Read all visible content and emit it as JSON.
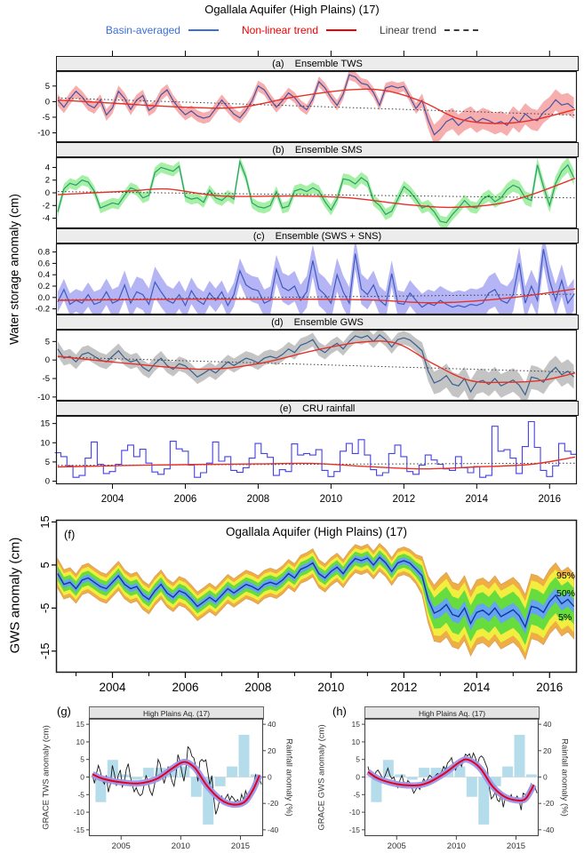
{
  "title": "Ogallala Aquifer (High Plains) (17)",
  "legend": {
    "basin": "Basin-averaged",
    "nonlinear": "Non-linear trend",
    "linear": "Linear trend",
    "basin_color": "#3a6fd8",
    "nonlinear_color": "#f00000",
    "linear_color": "#3c3c3c"
  },
  "stack_ylabel": "Water storage anomaly (cm)",
  "chart_data": {
    "type": "line",
    "x_range": [
      2002.45,
      2016.75
    ],
    "x_start": 2002.5,
    "x_step": 0.166667,
    "x_ticks_major": [
      "2004",
      "2006",
      "2008",
      "2010",
      "2012",
      "2014",
      "2016"
    ],
    "trend_color": "#e63028",
    "linear_trend_color": "#3c3c3c",
    "panels": {
      "a": {
        "tag": "(a)",
        "label": "Ensemble TWS",
        "ylim": [
          -13,
          9.8
        ],
        "yticks": [
          "5",
          "0",
          "-5",
          "-10"
        ],
        "band_color": "#f7aeae",
        "line_color": "#4853a4",
        "values": [
          0.5,
          -1.8,
          1.0,
          3.3,
          1.5,
          -1.0,
          -2.0,
          0.5,
          -4.3,
          -2.0,
          3.3,
          1.0,
          -2.5,
          0.5,
          2.0,
          -2.8,
          -1.5,
          2.2,
          3.8,
          0.3,
          -2.2,
          -4.2,
          -3.0,
          -4.6,
          -5.3,
          -4.8,
          -2.2,
          0.5,
          -1.8,
          -4.0,
          -5.2,
          -2.8,
          0.3,
          5.0,
          3.8,
          0.8,
          -1.8,
          0.3,
          2.8,
          1.3,
          -1.2,
          -2.6,
          0.8,
          6.4,
          4.4,
          1.3,
          -1.2,
          2.4,
          8.6,
          7.9,
          5.9,
          5.4,
          2.9,
          -1.2,
          4.4,
          5.0,
          4.4,
          4.9,
          1.4,
          -2.2,
          0.4,
          -6.0,
          -10.6,
          -8.9,
          -6.4,
          -5.4,
          -7.6,
          -5.9,
          -4.9,
          -6.6,
          -5.4,
          -6.1,
          -7.1,
          -6.4,
          -7.6,
          -4.9,
          -6.6,
          -3.9,
          -5.6,
          -6.1,
          -3.4,
          -1.9,
          0.6,
          -1.1,
          -0.6,
          -2.1
        ],
        "band_hw": [
          [
            2002.5,
            1.9
          ],
          [
            2012.3,
            1.6
          ],
          [
            2012.9,
            3.4
          ],
          [
            2016.7,
            3.4
          ]
        ],
        "trend": [
          [
            2002.5,
            0.5
          ],
          [
            2004,
            -0.5
          ],
          [
            2006,
            -1.8
          ],
          [
            2007.5,
            -1.8
          ],
          [
            2009,
            1.5
          ],
          [
            2010.5,
            3.8
          ],
          [
            2011.5,
            3.5
          ],
          [
            2012.5,
            0.0
          ],
          [
            2013.5,
            -5.5
          ],
          [
            2014.5,
            -7.0
          ],
          [
            2015.5,
            -6.0
          ],
          [
            2016.7,
            -2.5
          ]
        ],
        "linear": [
          [
            2002.5,
            1.2
          ],
          [
            2016.7,
            -4.3
          ]
        ]
      },
      "b": {
        "tag": "(b)",
        "label": "Ensemble SMS",
        "ylim": [
          -5.6,
          5.6
        ],
        "yticks": [
          "4",
          "2",
          "0",
          "-2",
          "-4"
        ],
        "band_color": "#a6f0a6",
        "line_color": "#2c9e6e",
        "values": [
          -3.0,
          0.6,
          1.5,
          1.2,
          2.0,
          1.7,
          0.3,
          -2.4,
          -2.0,
          -1.6,
          -1.8,
          -0.4,
          0.8,
          0.4,
          -0.8,
          -0.4,
          3.2,
          4.0,
          3.7,
          3.4,
          4.2,
          -0.6,
          -1.0,
          -0.8,
          -1.5,
          0.4,
          -0.8,
          -1.2,
          -0.4,
          -1.0,
          4.9,
          2.4,
          -1.6,
          -2.2,
          -2.4,
          -2.0,
          0.2,
          -2.4,
          -2.1,
          0.3,
          0.6,
          0.2,
          0.8,
          0.3,
          -1.4,
          -2.7,
          -1.0,
          2.2,
          2.0,
          1.4,
          2.4,
          1.7,
          -1.2,
          -2.0,
          -3.4,
          -2.9,
          -1.0,
          1.0,
          0.2,
          -1.0,
          -2.4,
          -2.0,
          -3.0,
          -4.5,
          -4.7,
          -3.4,
          -2.4,
          -1.2,
          -2.2,
          -2.4,
          -1.0,
          -0.4,
          -1.4,
          -0.8,
          0.5,
          1.2,
          0.8,
          -0.8,
          -1.2,
          4.4,
          1.0,
          -2.0,
          1.5,
          3.4,
          4.4,
          2.4
        ],
        "band_hw": [
          [
            2002.5,
            0.8
          ],
          [
            2014,
            0.9
          ],
          [
            2016.7,
            1.2
          ]
        ],
        "trend": [
          [
            2002.5,
            -0.3
          ],
          [
            2004.5,
            0.3
          ],
          [
            2005.5,
            0.6
          ],
          [
            2007,
            -0.5
          ],
          [
            2009,
            -0.5
          ],
          [
            2010.5,
            -0.8
          ],
          [
            2012,
            -1.8
          ],
          [
            2013.2,
            -2.3
          ],
          [
            2014.5,
            -1.8
          ],
          [
            2015.5,
            -0.3
          ],
          [
            2016.7,
            2.3
          ]
        ],
        "linear": [
          [
            2002.5,
            0.2
          ],
          [
            2016.7,
            -0.8
          ]
        ]
      },
      "c": {
        "tag": "(c)",
        "label": "Ensemble (SWS + SNS)",
        "ylim": [
          -0.3,
          0.95
        ],
        "yticks": [
          "0.8",
          "0.6",
          "0.4",
          "0.2",
          "0.0",
          "-0.2"
        ],
        "band_color": "#b5b5f5",
        "line_color": "#3d5bbf",
        "values": [
          -0.08,
          0.14,
          -0.12,
          -0.05,
          -0.1,
          0.05,
          -0.12,
          -0.08,
          0.1,
          -0.1,
          -0.05,
          0.22,
          -0.1,
          0.1,
          0.05,
          -0.12,
          0.27,
          0.1,
          -0.05,
          -0.1,
          0.05,
          -0.14,
          0.12,
          -0.05,
          -0.12,
          0.08,
          -0.05,
          0.1,
          -0.14,
          0.05,
          0.47,
          0.22,
          0.15,
          0.12,
          -0.1,
          -0.05,
          0.5,
          0.18,
          0.12,
          0.2,
          -0.05,
          0.1,
          0.65,
          0.15,
          0.05,
          -0.1,
          0.4,
          0.1,
          -0.1,
          0.77,
          0.15,
          0.05,
          0.22,
          -0.05,
          -0.14,
          0.42,
          -0.1,
          -0.12,
          0.08,
          -0.05,
          -0.17,
          -0.1,
          -0.14,
          -0.05,
          -0.12,
          -0.17,
          -0.14,
          -0.17,
          -0.12,
          -0.14,
          -0.1,
          0.08,
          0.14,
          -0.05,
          -0.1,
          0.05,
          0.6,
          -0.1,
          0.2,
          -0.05,
          0.85,
          0.3,
          -0.05,
          0.3,
          -0.1,
          0.05
        ],
        "band_hw": [
          [
            2002.5,
            0.18
          ],
          [
            2005.0,
            0.28
          ],
          [
            2007,
            0.2
          ],
          [
            2010,
            0.3
          ],
          [
            2012,
            0.22
          ],
          [
            2014.5,
            0.3
          ],
          [
            2016.7,
            0.28
          ]
        ],
        "trend": [
          [
            2002.5,
            -0.05
          ],
          [
            2006,
            -0.03
          ],
          [
            2009,
            -0.03
          ],
          [
            2011,
            -0.04
          ],
          [
            2012.5,
            -0.09
          ],
          [
            2013.5,
            -0.08
          ],
          [
            2015,
            0.0
          ],
          [
            2016.7,
            0.15
          ]
        ],
        "linear": [
          [
            2002.5,
            -0.04
          ],
          [
            2016.7,
            0.06
          ]
        ]
      },
      "d": {
        "tag": "(d)",
        "label": "Ensemble GWS",
        "ylim": [
          -11,
          8.2
        ],
        "yticks": [
          "5",
          "0",
          "-5",
          "-10"
        ],
        "band_color": "#c4c4c4",
        "line_color": "#35618f",
        "values": [
          3.0,
          0.5,
          1.0,
          -0.5,
          1.5,
          2.0,
          1.0,
          0.0,
          -0.5,
          1.0,
          2.5,
          0.5,
          -0.5,
          0.0,
          -2.0,
          -3.0,
          -1.0,
          0.5,
          -1.5,
          -2.5,
          -1.0,
          -1.6,
          -3.0,
          -4.6,
          -3.6,
          -2.5,
          -3.5,
          -2.0,
          -0.5,
          -1.5,
          -0.5,
          0.5,
          0.0,
          -0.8,
          0.5,
          1.0,
          0.5,
          1.5,
          3.0,
          2.0,
          4.0,
          4.6,
          5.5,
          3.0,
          2.0,
          3.5,
          4.5,
          3.0,
          5.0,
          6.5,
          6.0,
          6.6,
          5.0,
          6.8,
          5.5,
          3.5,
          5.5,
          6.0,
          5.4,
          4.0,
          2.5,
          -3.0,
          -6.2,
          -5.5,
          -4.2,
          -6.5,
          -7.0,
          -5.0,
          -8.6,
          -6.0,
          -5.5,
          -6.6,
          -5.0,
          -7.0,
          -6.2,
          -5.4,
          -6.8,
          -9.4,
          -4.6,
          -5.0,
          -6.0,
          -3.5,
          -2.0,
          -4.0,
          -3.0,
          -4.6
        ],
        "band_hw": [
          [
            2002.5,
            2.0
          ],
          [
            2012.3,
            1.8
          ],
          [
            2012.9,
            3.2
          ],
          [
            2016.7,
            3.2
          ]
        ],
        "trend": [
          [
            2002.5,
            1.0
          ],
          [
            2004.5,
            -1.0
          ],
          [
            2006.5,
            -2.5
          ],
          [
            2008,
            -1.0
          ],
          [
            2009.5,
            2.5
          ],
          [
            2010.8,
            4.8
          ],
          [
            2011.8,
            4.5
          ],
          [
            2012.8,
            -1.0
          ],
          [
            2013.8,
            -5.5
          ],
          [
            2014.8,
            -6.0
          ],
          [
            2015.8,
            -5.5
          ],
          [
            2016.7,
            -3.5
          ]
        ],
        "linear": [
          [
            2002.5,
            0.8
          ],
          [
            2016.7,
            -3.3
          ]
        ]
      },
      "e": {
        "tag": "(e)",
        "label": "CRU rainfall",
        "ylim": [
          -0.8,
          17
        ],
        "yticks": [
          "15",
          "10",
          "5",
          "0"
        ],
        "line_color": "#4440e8",
        "step": true,
        "values": [
          7.4,
          6.4,
          4.0,
          1.0,
          1.5,
          6.0,
          10.2,
          4.4,
          2.0,
          2.5,
          4.4,
          8.0,
          9.4,
          6.4,
          8.3,
          4.7,
          2.4,
          1.8,
          3.2,
          10.4,
          8.4,
          7.8,
          4.2,
          1.0,
          2.2,
          4.7,
          10.2,
          5.2,
          6.4,
          2.8,
          2.3,
          3.5,
          6.0,
          9.8,
          7.2,
          6.2,
          1.5,
          3.0,
          2.5,
          9.7,
          6.8,
          7.2,
          6.8,
          8.2,
          2.8,
          1.2,
          2.5,
          7.8,
          9.8,
          7.2,
          10.8,
          6.8,
          3.0,
          1.5,
          2.2,
          7.2,
          9.4,
          6.4,
          2.5,
          1.8,
          4.2,
          6.8,
          5.5,
          4.4,
          3.2,
          2.8,
          6.4,
          3.5,
          2.2,
          3.8,
          1.0,
          1.5,
          14.3,
          7.8,
          8.2,
          6.0,
          2.0,
          9.0,
          15.5,
          8.8,
          2.8,
          1.2,
          4.0,
          9.8,
          7.8,
          7.0
        ],
        "trend": [
          [
            2002.5,
            3.7
          ],
          [
            2005,
            4.2
          ],
          [
            2008,
            4.5
          ],
          [
            2009.5,
            4.6
          ],
          [
            2011,
            3.8
          ],
          [
            2012.5,
            3.2
          ],
          [
            2014,
            3.7
          ],
          [
            2015.5,
            4.4
          ],
          [
            2016.7,
            6.3
          ]
        ],
        "linear": [
          [
            2002.5,
            4.1
          ],
          [
            2016.7,
            4.7
          ]
        ]
      }
    },
    "f": {
      "tag": "(f)",
      "title": "Ogallala Aquifer (High Plains) (17)",
      "ylabel": "GWS anomaly (cm)",
      "ylim": [
        -20,
        15.5
      ],
      "yticks": [
        "15",
        "5",
        "-5",
        "-15"
      ],
      "median_color": "#16349c",
      "median_from": "d",
      "band_colors": [
        "#efae45",
        "#f2ee3f",
        "#66dc3e",
        "#64a4f0"
      ],
      "band_hw": [
        [
          [
            2002.5,
            3.4
          ],
          [
            2012.3,
            3.2
          ],
          [
            2013.0,
            7.5
          ],
          [
            2016.7,
            7.5
          ]
        ],
        [
          [
            2002.5,
            2.6
          ],
          [
            2012.3,
            2.4
          ],
          [
            2013.0,
            6.0
          ],
          [
            2016.7,
            6.0
          ]
        ],
        [
          [
            2002.5,
            1.7
          ],
          [
            2012.3,
            1.6
          ],
          [
            2013.0,
            4.2
          ],
          [
            2016.7,
            4.2
          ]
        ],
        [
          [
            2002.5,
            0.8
          ],
          [
            2012.3,
            0.8
          ],
          [
            2013.0,
            1.6
          ],
          [
            2016.7,
            1.6
          ]
        ]
      ],
      "quantile_labels": {
        "p95": "95%",
        "p50": "50%",
        "p5": "5%"
      }
    },
    "rainfall_bars": {
      "years": [
        2003,
        2004,
        2005,
        2006,
        2007,
        2008,
        2009,
        2010,
        2011,
        2012,
        2013,
        2014,
        2015,
        2016
      ],
      "values_pct": [
        -19,
        13,
        2,
        -2,
        7,
        7,
        8,
        8,
        -15,
        -36,
        -7,
        8,
        32,
        2
      ],
      "color": "#b5dcea"
    },
    "g": {
      "tag": "(g)",
      "strip": "High Plains Aq. (17)",
      "ylabel": "GRACE TWS anomaly (cm)",
      "ylabel_right": "Rainfall anomaly (%)",
      "ylim": [
        -16.8,
        16.8
      ],
      "yticks": [
        "15",
        "10",
        "5",
        "0",
        "-5",
        "-10",
        "-15"
      ],
      "right_ticks": [
        "40",
        "20",
        "0",
        "-20",
        "-40"
      ],
      "x_ticks": [
        "2005",
        "2010",
        "2015"
      ],
      "x_range": [
        2002.3,
        2016.9
      ],
      "line_color": "#1a1a1a",
      "trend_color": "#e4001c",
      "band_color": "#9b95e8",
      "values_from": "a",
      "trend": [
        [
          2002.6,
          0.8
        ],
        [
          2003.5,
          -0.5
        ],
        [
          2005,
          -1.5
        ],
        [
          2006.5,
          -1.8
        ],
        [
          2008,
          -0.5
        ],
        [
          2009.3,
          2.5
        ],
        [
          2010.3,
          4.3
        ],
        [
          2011.2,
          2.5
        ],
        [
          2012.2,
          -2.5
        ],
        [
          2013.3,
          -6.3
        ],
        [
          2014.3,
          -7.8
        ],
        [
          2015.3,
          -7.2
        ],
        [
          2016.0,
          -4.0
        ],
        [
          2016.6,
          0.5
        ]
      ]
    },
    "h": {
      "tag": "(h)",
      "strip": "High Plains Aq. (17)",
      "ylabel": "GRACE GWS anomaly (cm)",
      "ylabel_right": "Rainfall anomaly (%)",
      "ylim": [
        -16.8,
        16.8
      ],
      "yticks": [
        "15",
        "10",
        "5",
        "0",
        "-5",
        "-10",
        "-15"
      ],
      "right_ticks": [
        "40",
        "20",
        "0",
        "-20",
        "-40"
      ],
      "x_ticks": [
        "2005",
        "2010",
        "2015"
      ],
      "x_range": [
        2002.3,
        2016.9
      ],
      "line_color": "#1a1a1a",
      "trend_color": "#e4001c",
      "band_color": "#9b95e8",
      "values_from": "d",
      "trend": [
        [
          2002.6,
          1.5
        ],
        [
          2003.5,
          -0.5
        ],
        [
          2005,
          -2.0
        ],
        [
          2006.3,
          -2.4
        ],
        [
          2007.5,
          -1.8
        ],
        [
          2009,
          1.0
        ],
        [
          2010.3,
          4.3
        ],
        [
          2011.0,
          4.9
        ],
        [
          2012.0,
          2.5
        ],
        [
          2013.0,
          -2.5
        ],
        [
          2014.0,
          -5.5
        ],
        [
          2015.0,
          -6.6
        ],
        [
          2015.8,
          -6.2
        ],
        [
          2016.5,
          -2.2
        ]
      ]
    }
  }
}
